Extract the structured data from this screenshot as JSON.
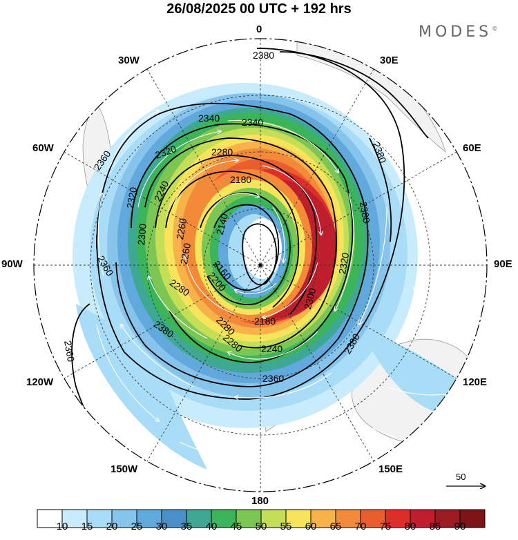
{
  "header": {
    "title": "26/08/2025  00 UTC  + 192 hrs",
    "brand": "MODES",
    "brand_mark": "©"
  },
  "longitude_labels": {
    "n0": "0",
    "n30e": "30E",
    "n60e": "60E",
    "n90e": "90E",
    "n120e": "120E",
    "n150e": "150E",
    "n180": "180",
    "n150w": "150W",
    "n120w": "120W",
    "n90w": "90W",
    "n60w": "60W",
    "n30w": "30W"
  },
  "contour_labels": {
    "c1": "2380",
    "c2": "2380",
    "c3": "2360",
    "c4": "2340",
    "c5": "2340",
    "c6": "2320",
    "c7": "2280",
    "c8": "2180",
    "c9": "2140",
    "c10": "2160",
    "c11": "2240",
    "c12": "2260",
    "c13": "2320",
    "c14": "2280",
    "c15": "2360",
    "c16": "2380",
    "c17": "2360",
    "c18": "2380",
    "c19": "2180",
    "c20": "2240",
    "c21": "2360",
    "c22": "2280",
    "c23": "2300",
    "c24": "2320",
    "c25": "2380",
    "c26": "2260",
    "c27": "2300",
    "c28": "2200",
    "c29": "2280"
  },
  "reference_vector": {
    "label": "50"
  },
  "colorbar": {
    "ticks": [
      "10",
      "15",
      "20",
      "25",
      "30",
      "35",
      "40",
      "45",
      "50",
      "55",
      "60",
      "65",
      "70",
      "75",
      "80",
      "85",
      "90"
    ],
    "colors": [
      "#ffffff",
      "#c8ecfb",
      "#a9dcf6",
      "#86c4ec",
      "#61a9dd",
      "#4a8fc9",
      "#3fa894",
      "#3bb45a",
      "#7cc653",
      "#c4de58",
      "#f7e45a",
      "#f7b34a",
      "#f28a3a",
      "#ea5d2f",
      "#dc2f2a",
      "#bf1e2c",
      "#9c1a22",
      "#7d1418"
    ]
  },
  "colors": {
    "jet_core": "#c81e28",
    "ring_green": "#3bb45a",
    "ocean_light": "#a9dcf6",
    "land": "#f2f2f2"
  }
}
